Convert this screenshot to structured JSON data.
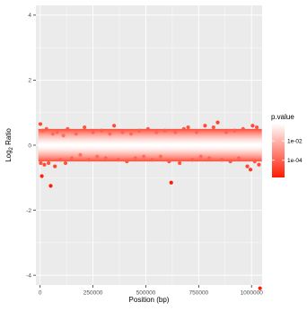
{
  "chart_data": {
    "type": "scatter",
    "title": "",
    "xlabel": "Position (bp)",
    "ylabel": "Log2 Ratio",
    "xlim": [
      -20000,
      1050000
    ],
    "ylim": [
      -4.3,
      4.3
    ],
    "x_ticks": [
      0,
      250000,
      500000,
      750000,
      1000000
    ],
    "x_tick_labels": [
      "0",
      "250000",
      "500000",
      "750000",
      "1000000"
    ],
    "y_ticks": [
      -4,
      -2,
      0,
      2,
      4
    ],
    "y_tick_labels": [
      "-4",
      "-2",
      "0",
      "2",
      "4"
    ],
    "grid": true,
    "background": "#ebebeb",
    "legend": {
      "title": "p.value",
      "position": "right",
      "labels": [
        "1e-02",
        "1e-04"
      ],
      "color_low_p": "#ff1a00",
      "color_high_p": "#ffffff"
    },
    "series": [
      {
        "points": [
          [
            1000,
            0.65
          ],
          [
            3000,
            -0.55
          ],
          [
            8000,
            -0.95
          ],
          [
            12000,
            0.45
          ],
          [
            20000,
            -0.6
          ],
          [
            30000,
            0.5
          ],
          [
            40000,
            -0.55
          ],
          [
            50000,
            -1.25
          ],
          [
            60000,
            0.35
          ],
          [
            70000,
            -0.65
          ],
          [
            80000,
            0.4
          ],
          [
            95000,
            -0.45
          ],
          [
            110000,
            0.3
          ],
          [
            120000,
            -0.55
          ],
          [
            130000,
            0.5
          ],
          [
            150000,
            -0.4
          ],
          [
            170000,
            0.35
          ],
          [
            190000,
            -0.3
          ],
          [
            210000,
            0.55
          ],
          [
            230000,
            -0.45
          ],
          [
            250000,
            0.4
          ],
          [
            270000,
            -0.35
          ],
          [
            290000,
            0.45
          ],
          [
            310000,
            -0.4
          ],
          [
            330000,
            0.35
          ],
          [
            350000,
            0.6
          ],
          [
            370000,
            -0.45
          ],
          [
            390000,
            0.4
          ],
          [
            410000,
            -0.5
          ],
          [
            430000,
            0.35
          ],
          [
            450000,
            -0.4
          ],
          [
            470000,
            0.45
          ],
          [
            490000,
            -0.35
          ],
          [
            510000,
            0.5
          ],
          [
            530000,
            -0.45
          ],
          [
            550000,
            0.4
          ],
          [
            570000,
            -0.35
          ],
          [
            590000,
            0.45
          ],
          [
            610000,
            -0.5
          ],
          [
            620000,
            -1.15
          ],
          [
            640000,
            0.4
          ],
          [
            660000,
            -0.55
          ],
          [
            680000,
            0.5
          ],
          [
            700000,
            0.55
          ],
          [
            720000,
            -0.45
          ],
          [
            740000,
            0.4
          ],
          [
            760000,
            -0.35
          ],
          [
            780000,
            0.6
          ],
          [
            800000,
            -0.4
          ],
          [
            820000,
            0.55
          ],
          [
            840000,
            0.7
          ],
          [
            860000,
            -0.45
          ],
          [
            880000,
            0.4
          ],
          [
            900000,
            -0.5
          ],
          [
            920000,
            0.45
          ],
          [
            940000,
            -0.4
          ],
          [
            960000,
            0.5
          ],
          [
            980000,
            -0.65
          ],
          [
            995000,
            -0.75
          ],
          [
            1005000,
            0.6
          ],
          [
            1015000,
            -0.5
          ],
          [
            1025000,
            0.55
          ],
          [
            1035000,
            -0.6
          ],
          [
            1040000,
            -4.4
          ]
        ]
      }
    ]
  }
}
